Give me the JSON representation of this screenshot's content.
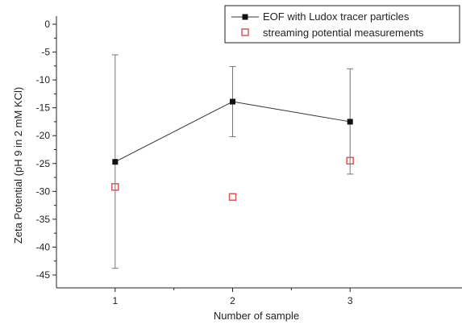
{
  "chart_data": {
    "type": "line",
    "title": "",
    "xlabel": "Number of sample",
    "ylabel": "Zeta Potential (pH 9 in 2 mM KCl)",
    "categories": [
      "1",
      "2",
      "3"
    ],
    "x": [
      1,
      2,
      3
    ],
    "xlim": [
      0.5,
      3.5
    ],
    "ylim": [
      -47,
      0
    ],
    "yticks": [
      0,
      -5,
      -10,
      -15,
      -20,
      -25,
      -30,
      -35,
      -40,
      -45
    ],
    "grid": false,
    "legend_position": "top-right",
    "series": [
      {
        "name": "EOF with Ludox tracer particles",
        "style": "line-square-filled",
        "color": "#111111",
        "values": [
          -24.7,
          -13.9,
          -17.5
        ],
        "error_low": [
          -43.8,
          -20.2,
          -26.9
        ],
        "error_high": [
          -5.5,
          -7.6,
          -8.0
        ]
      },
      {
        "name": "streaming potential measurements",
        "style": "square-open",
        "color": "#e05555",
        "values": [
          -29.2,
          -31.0,
          -24.5
        ]
      }
    ]
  }
}
